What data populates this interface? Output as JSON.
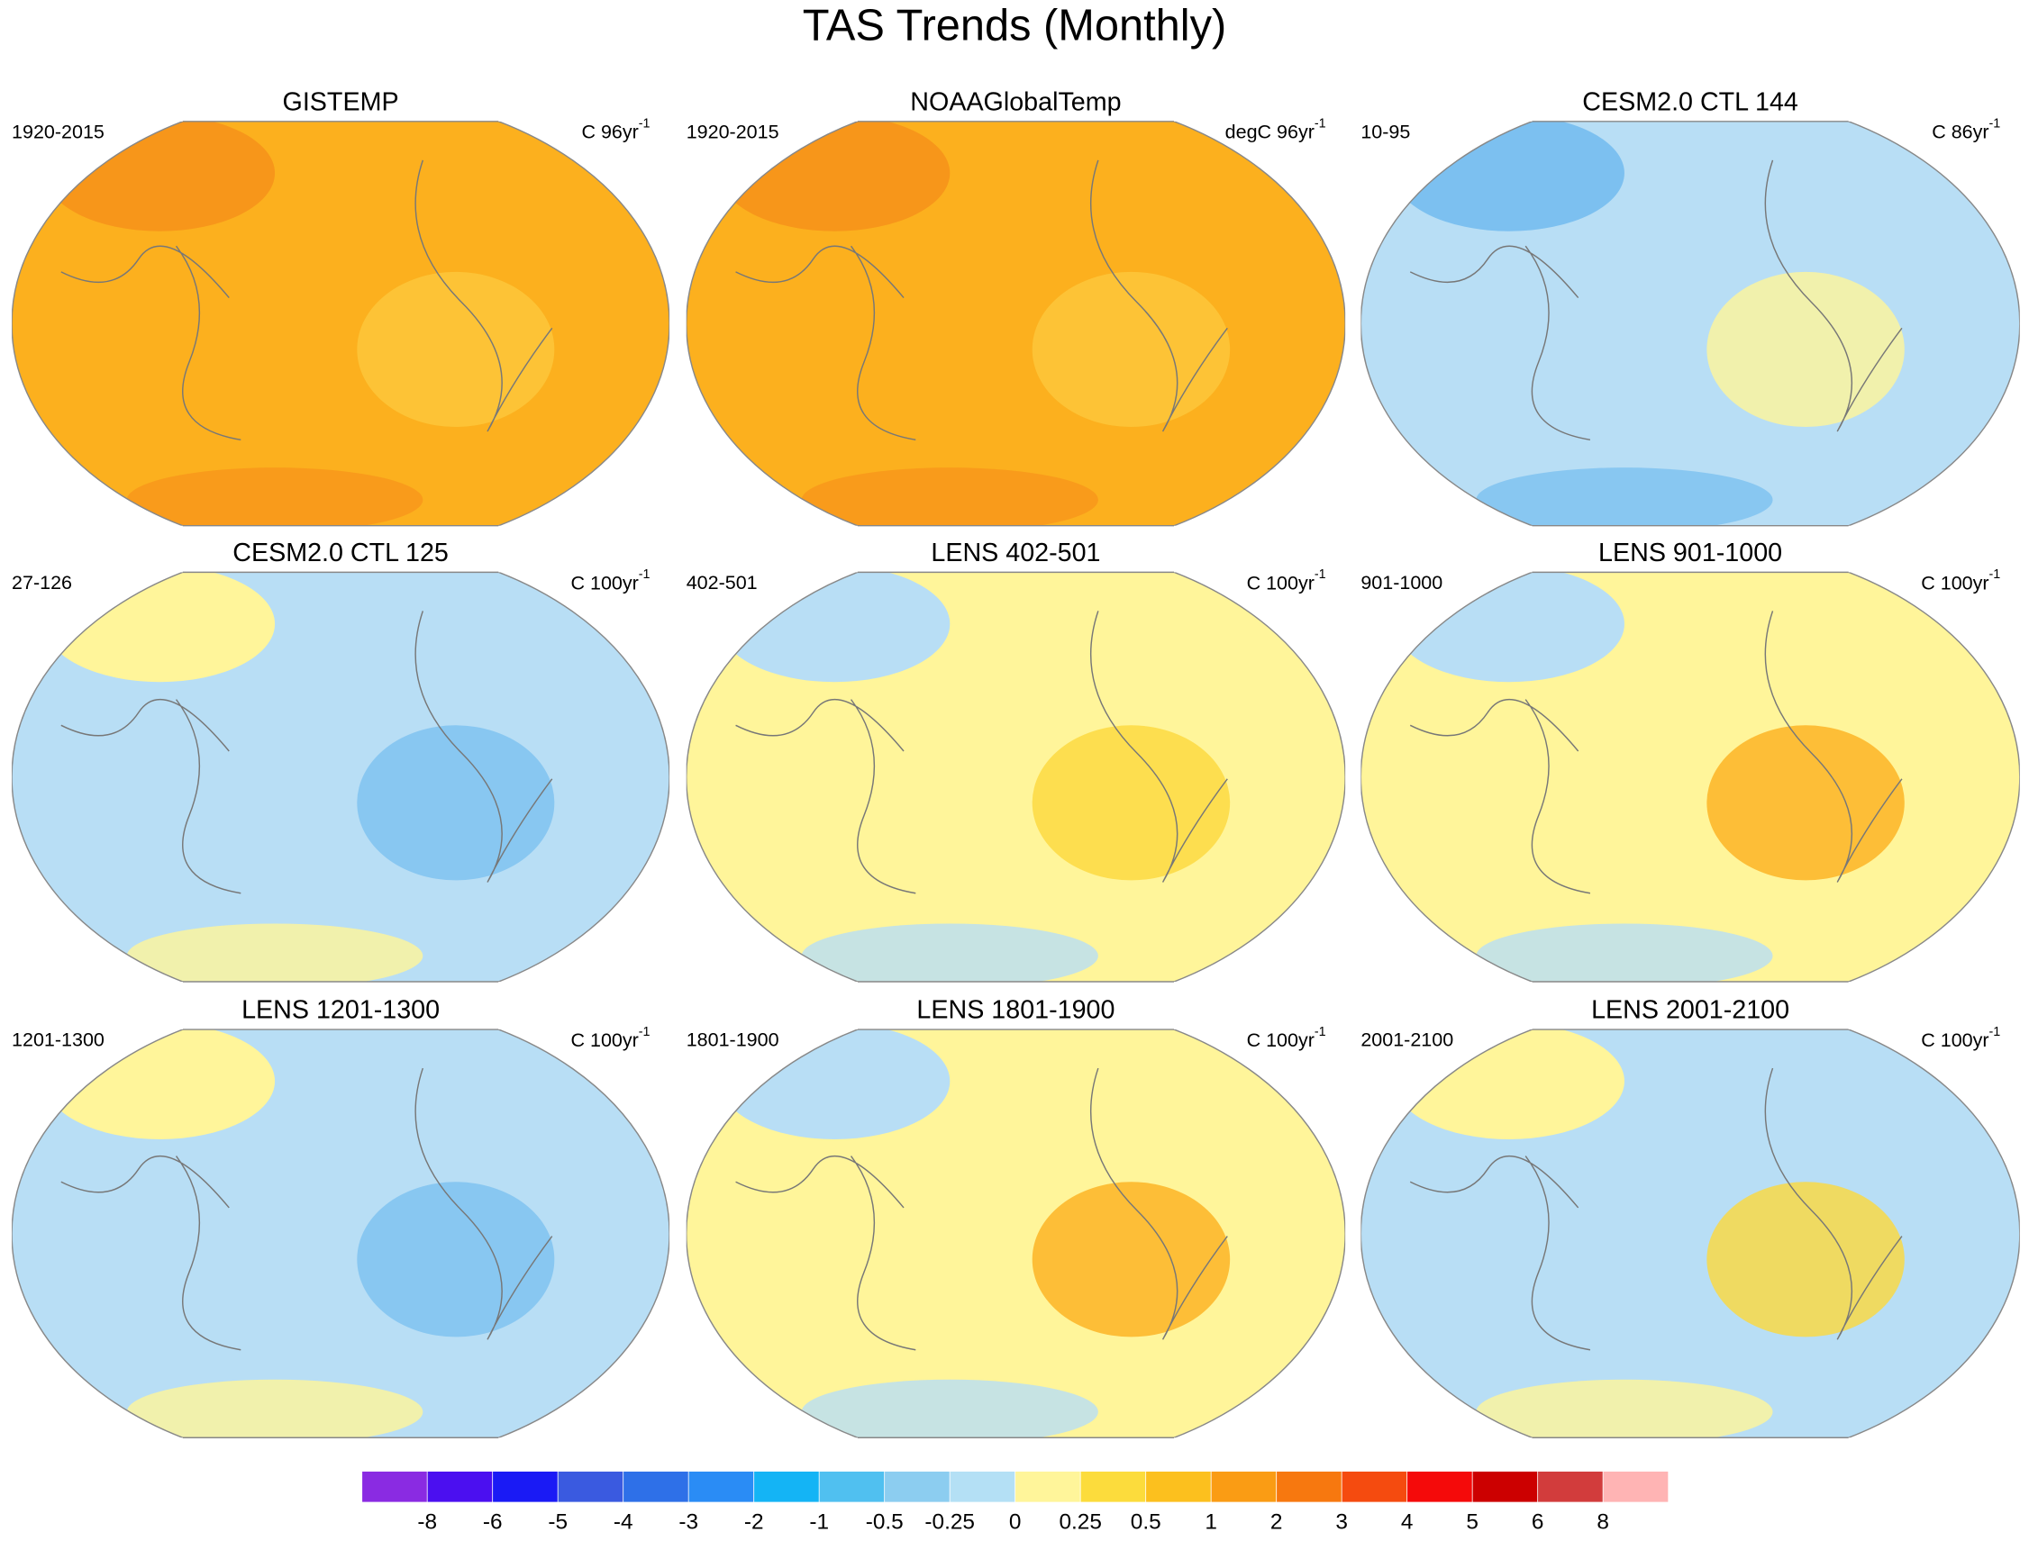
{
  "title": "TAS Trends (Monthly)",
  "panels": [
    {
      "title": "GISTEMP",
      "period": "1920-2015",
      "units": {
        "text": "C 96yr",
        "sup": "-1"
      }
    },
    {
      "title": "NOAAGlobalTemp",
      "period": "1920-2015",
      "units": {
        "text": "degC 96yr",
        "sup": "-1"
      }
    },
    {
      "title": "CESM2.0 CTL 144",
      "period": "10-95",
      "units": {
        "text": "C 86yr",
        "sup": "-1"
      }
    },
    {
      "title": "CESM2.0 CTL 125",
      "period": "27-126",
      "units": {
        "text": "C 100yr",
        "sup": "-1"
      }
    },
    {
      "title": "LENS 402-501",
      "period": "402-501",
      "units": {
        "text": "C 100yr",
        "sup": "-1"
      }
    },
    {
      "title": "LENS 901-1000",
      "period": "901-1000",
      "units": {
        "text": "C 100yr",
        "sup": "-1"
      }
    },
    {
      "title": "LENS 1201-1300",
      "period": "1201-1300",
      "units": {
        "text": "C 100yr",
        "sup": "-1"
      }
    },
    {
      "title": "LENS 1801-1900",
      "period": "1801-1900",
      "units": {
        "text": "C 100yr",
        "sup": "-1"
      }
    },
    {
      "title": "LENS 2001-2100",
      "period": "2001-2100",
      "units": {
        "text": "C 100yr",
        "sup": "-1"
      }
    }
  ],
  "colorbar": {
    "colors": [
      "#8a2be2",
      "#4b0ff0",
      "#1a1af5",
      "#3a5ae0",
      "#2e70e8",
      "#2a8cf5",
      "#14b4f5",
      "#50c0f0",
      "#8ccdf0",
      "#b4e0f5",
      "#fff59a",
      "#fcdc3c",
      "#fcc01e",
      "#fa9c14",
      "#f7780f",
      "#f54b0f",
      "#f50a0a",
      "#cc0000",
      "#d23c3c",
      "#ffb4b4"
    ],
    "labels": [
      -8,
      -6,
      -5,
      -4,
      -3,
      -2,
      -1,
      -0.5,
      -0.25,
      0,
      0.25,
      0.5,
      1,
      2,
      3,
      4,
      5,
      6,
      8
    ]
  }
}
